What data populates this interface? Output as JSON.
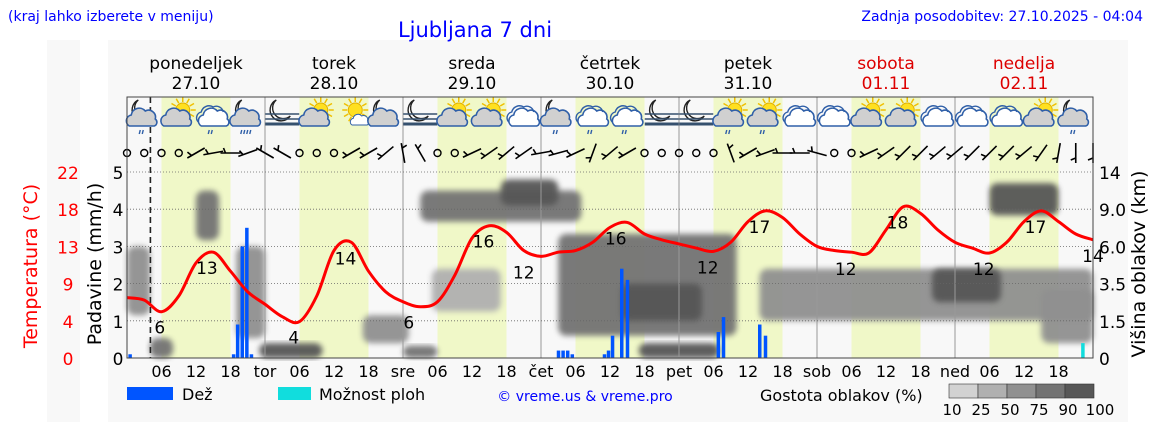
{
  "header": {
    "hint": "(kraj lahko izberete v meniju)",
    "title": "Ljubljana 7 dni",
    "updated": "Zadnja posodobitev: 27.10.2025 - 04:04"
  },
  "colors": {
    "temperature": "#ff0000",
    "rain": "#0055ff",
    "showers": "#11dddd",
    "day_shade": "#f0f8c8",
    "header_text": "#0000ff",
    "weekend": "#dd0000"
  },
  "chart_data": {
    "type": "line",
    "title": "Ljubljana 7 dni",
    "now_hour": 4.07,
    "x_unit": "hours since 27.10 00:00",
    "days": [
      {
        "name": "ponedeljek",
        "date": "27.10",
        "weekend": false,
        "abbr": ""
      },
      {
        "name": "torek",
        "date": "28.10",
        "weekend": false,
        "abbr": "tor"
      },
      {
        "name": "sreda",
        "date": "29.10",
        "weekend": false,
        "abbr": "sre"
      },
      {
        "name": "četrtek",
        "date": "30.10",
        "weekend": false,
        "abbr": "čet"
      },
      {
        "name": "petek",
        "date": "31.10",
        "weekend": false,
        "abbr": "pet"
      },
      {
        "name": "sobota",
        "date": "01.11",
        "weekend": true,
        "abbr": "sob"
      },
      {
        "name": "nedelja",
        "date": "02.11",
        "weekend": true,
        "abbr": "ned"
      }
    ],
    "hour_ticks": [
      "06",
      "12",
      "18"
    ],
    "axes": {
      "temperature": {
        "label": "Temperatura (°C)",
        "ticks": [
          "0",
          "4",
          "9",
          "13",
          "18",
          "22"
        ],
        "range": [
          0,
          22.5
        ]
      },
      "precipitation": {
        "label": "Padavine (mm/h)",
        "ticks": [
          "0",
          "1",
          "2",
          "3",
          "4",
          "5"
        ],
        "range": [
          0,
          5
        ]
      },
      "cloud_height": {
        "label": "Višina oblakov (km)",
        "ticks": [
          "0",
          "1.5",
          "3.5",
          "6.0",
          "9.0",
          "14"
        ],
        "values": [
          0,
          1.5,
          3.5,
          6,
          9,
          14
        ]
      }
    },
    "grid": true,
    "temperature": {
      "hours": [
        0,
        3,
        6,
        9,
        12,
        15,
        18,
        21,
        24,
        27,
        30,
        33,
        36,
        39,
        42,
        45,
        48,
        51,
        54,
        57,
        60,
        63,
        66,
        69,
        72,
        75,
        78,
        81,
        84,
        87,
        90,
        93,
        96,
        99,
        102,
        105,
        108,
        111,
        114,
        117,
        120,
        123,
        126,
        129,
        132,
        135,
        138,
        141,
        144,
        147,
        150,
        153,
        156,
        159,
        162,
        165,
        168
      ],
      "values": [
        7.3,
        7.0,
        5.6,
        7.5,
        11.5,
        12.8,
        10.5,
        8.0,
        6.5,
        5.0,
        4.4,
        7.5,
        13.0,
        14.0,
        10.5,
        8.0,
        6.8,
        6.2,
        6.8,
        10.0,
        14.5,
        16.0,
        15.2,
        13.0,
        12.3,
        12.8,
        13.0,
        14.0,
        15.8,
        16.4,
        15.0,
        14.3,
        13.8,
        13.3,
        12.9,
        14.0,
        16.5,
        17.8,
        17.0,
        15.0,
        13.5,
        13.0,
        12.8,
        12.7,
        15.5,
        18.3,
        17.5,
        15.5,
        14.0,
        13.3,
        12.7,
        14.0,
        16.5,
        17.8,
        16.5,
        15.0,
        14.3
      ]
    },
    "temperature_labels": [
      {
        "hour": 5.7,
        "text": "6",
        "value": 5.6
      },
      {
        "hour": 13.9,
        "text": "13",
        "value": 12.8
      },
      {
        "hour": 29,
        "text": "4",
        "value": 4.4
      },
      {
        "hour": 38,
        "text": "14",
        "value": 14.0
      },
      {
        "hour": 49,
        "text": "6",
        "value": 6.2
      },
      {
        "hour": 62,
        "text": "16",
        "value": 16.0
      },
      {
        "hour": 69,
        "text": "12",
        "value": 12.3
      },
      {
        "hour": 85,
        "text": "16",
        "value": 16.4
      },
      {
        "hour": 101,
        "text": "12",
        "value": 12.9
      },
      {
        "hour": 110,
        "text": "17",
        "value": 17.8
      },
      {
        "hour": 125,
        "text": "12",
        "value": 12.7
      },
      {
        "hour": 134,
        "text": "18",
        "value": 18.3
      },
      {
        "hour": 149,
        "text": "12",
        "value": 12.7
      },
      {
        "hour": 158,
        "text": "17",
        "value": 17.8
      },
      {
        "hour": 168,
        "text": "14",
        "value": 14.3
      }
    ],
    "rain": [
      {
        "hour": 0.5,
        "value": 0.1
      },
      {
        "hour": 18.5,
        "value": 0.1
      },
      {
        "hour": 19.2,
        "value": 0.9
      },
      {
        "hour": 20,
        "value": 3.0
      },
      {
        "hour": 20.8,
        "value": 3.5
      },
      {
        "hour": 21.6,
        "value": 0.1
      },
      {
        "hour": 75,
        "value": 0.2
      },
      {
        "hour": 75.8,
        "value": 0.2
      },
      {
        "hour": 76.6,
        "value": 0.2
      },
      {
        "hour": 77.4,
        "value": 0.1
      },
      {
        "hour": 83,
        "value": 0.1
      },
      {
        "hour": 83.7,
        "value": 0.2
      },
      {
        "hour": 84.4,
        "value": 0.6
      },
      {
        "hour": 86,
        "value": 2.4
      },
      {
        "hour": 87,
        "value": 2.1
      },
      {
        "hour": 102.8,
        "value": 0.7
      },
      {
        "hour": 103.7,
        "value": 1.1
      },
      {
        "hour": 110,
        "value": 0.9
      },
      {
        "hour": 111,
        "value": 0.6
      }
    ],
    "showers": [
      {
        "hour": 166.2,
        "value": 0.4
      }
    ],
    "clouds": [
      {
        "from": 0,
        "to": 4,
        "low": 1.8,
        "high": 6.0,
        "density": 50
      },
      {
        "from": 12,
        "to": 16,
        "low": 6.5,
        "high": 11.5,
        "density": 75
      },
      {
        "from": 4,
        "to": 8,
        "low": 0,
        "high": 0.8,
        "density": 75
      },
      {
        "from": 19,
        "to": 24,
        "low": 0.8,
        "high": 6.0,
        "density": 50
      },
      {
        "from": 23,
        "to": 34,
        "low": 0,
        "high": 0.6,
        "density": 90
      },
      {
        "from": 41,
        "to": 49,
        "low": 0.6,
        "high": 1.8,
        "density": 50
      },
      {
        "from": 48,
        "to": 54,
        "low": 0,
        "high": 0.5,
        "density": 75
      },
      {
        "from": 53,
        "to": 65,
        "low": 2.0,
        "high": 4.5,
        "density": 25
      },
      {
        "from": 51,
        "to": 79,
        "low": 8.0,
        "high": 11.5,
        "density": 75
      },
      {
        "from": 65,
        "to": 75,
        "low": 9.5,
        "high": 13.0,
        "density": 90
      },
      {
        "from": 75,
        "to": 106,
        "low": 0.9,
        "high": 7.0,
        "density": 75
      },
      {
        "from": 86,
        "to": 100,
        "low": 1.5,
        "high": 3.5,
        "density": 90
      },
      {
        "from": 89,
        "to": 103,
        "low": 0,
        "high": 0.6,
        "density": 90
      },
      {
        "from": 110,
        "to": 168,
        "low": 1.5,
        "high": 4.5,
        "density": 50
      },
      {
        "from": 140,
        "to": 152,
        "low": 2.5,
        "high": 4.5,
        "density": 90
      },
      {
        "from": 150,
        "to": 162,
        "low": 8.5,
        "high": 12.5,
        "density": 90
      },
      {
        "from": 159,
        "to": 168,
        "low": 0.6,
        "high": 3.2,
        "density": 50
      }
    ],
    "weather_icons": [
      "moon-cloud-rain",
      "sun-cloud",
      "cloud-rain",
      "moon-cloud-heavy-rain",
      "moon-fog",
      "sun-cloud",
      "sun-small-cloud",
      "moon-cloud",
      "moon-fog",
      "sun-cloud",
      "sun-cloud",
      "cloud",
      "moon-cloud-rain",
      "cloud-rain",
      "cloud-rain",
      "moon-fog",
      "moon-fog",
      "sun-cloud-rain",
      "sun-cloud-rain",
      "cloud",
      "cloud",
      "sun-cloud",
      "sun-cloud",
      "cloud",
      "cloud",
      "cloud",
      "sun-cloud",
      "moon-cloud-rain"
    ],
    "wind_directions": [
      "calm",
      "calm",
      "calm",
      "calm",
      240,
      260,
      270,
      250,
      300,
      300,
      "calm",
      "calm",
      "calm",
      240,
      240,
      230,
      350,
      330,
      "calm",
      "calm",
      245,
      235,
      230,
      235,
      260,
      255,
      245,
      200,
      230,
      240,
      "calm",
      "calm",
      "calm",
      "calm",
      "calm",
      340,
      240,
      250,
      270,
      270,
      285,
      "calm",
      "calm",
      245,
      235,
      225,
      225,
      230,
      230,
      225,
      225,
      225,
      230,
      215,
      190,
      180,
      180
    ]
  },
  "legend": {
    "rain": "Dež",
    "showers": "Možnost ploh",
    "credit": "© vreme.us & vreme.pro",
    "cloud_density_title": "Gostota oblakov (%)",
    "cloud_density_levels": [
      "10",
      "25",
      "50",
      "75",
      "90",
      "100"
    ],
    "cloud_density_colors": [
      "#d2d2d2",
      "#b0b0b0",
      "#909090",
      "#737373",
      "#575757"
    ]
  }
}
